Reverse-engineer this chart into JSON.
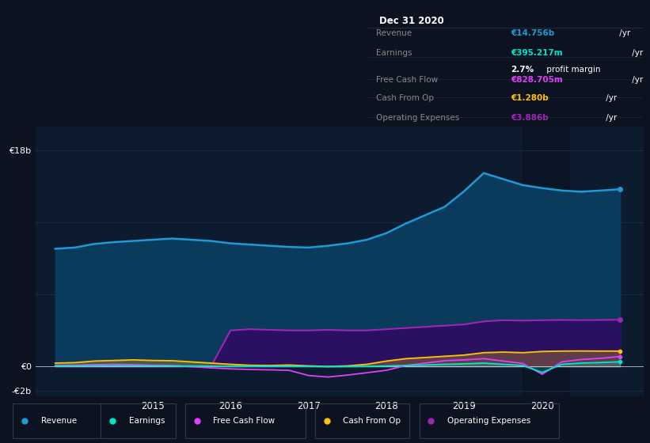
{
  "background_color": "#0c1220",
  "plot_bg_color": "#0d1b2e",
  "grid_color": "#1e3050",
  "xlim": [
    2013.5,
    2021.3
  ],
  "ylim": [
    -2500000000.0,
    20000000000.0
  ],
  "ytick_vals": [
    -2000000000.0,
    0,
    6000000000.0,
    12000000000.0,
    18000000000.0
  ],
  "ytick_labels": [
    "-€2b",
    "€0",
    "",
    "",
    "€18b"
  ],
  "y0_label": "€0",
  "xticks": [
    2015,
    2016,
    2017,
    2018,
    2019,
    2020
  ],
  "legend_items": [
    {
      "label": "Revenue",
      "color": "#1e9bd7"
    },
    {
      "label": "Earnings",
      "color": "#00e5cc"
    },
    {
      "label": "Free Cash Flow",
      "color": "#e040fb"
    },
    {
      "label": "Cash From Op",
      "color": "#ffc107"
    },
    {
      "label": "Operating Expenses",
      "color": "#9c27b0"
    }
  ],
  "infobox": {
    "date": "Dec 31 2020",
    "rows": [
      {
        "label": "Revenue",
        "value": "€14.756b",
        "unit": " /yr",
        "vc": "#1e9bd7"
      },
      {
        "label": "Earnings",
        "value": "€395.217m",
        "unit": " /yr",
        "vc": "#00e5cc"
      },
      {
        "label": "",
        "value": "2.7%",
        "unit": " profit margin",
        "vc": "#ffffff"
      },
      {
        "label": "Free Cash Flow",
        "value": "€828.705m",
        "unit": " /yr",
        "vc": "#e040fb"
      },
      {
        "label": "Cash From Op",
        "value": "€1.280b",
        "unit": " /yr",
        "vc": "#ffc107"
      },
      {
        "label": "Operating Expenses",
        "value": "€3.886b",
        "unit": " /yr",
        "vc": "#9c27b0"
      }
    ]
  },
  "series": {
    "x": [
      2013.75,
      2014.0,
      2014.25,
      2014.5,
      2014.75,
      2015.0,
      2015.25,
      2015.5,
      2015.75,
      2016.0,
      2016.25,
      2016.5,
      2016.75,
      2017.0,
      2017.25,
      2017.5,
      2017.75,
      2018.0,
      2018.25,
      2018.5,
      2018.75,
      2019.0,
      2019.25,
      2019.5,
      2019.75,
      2020.0,
      2020.25,
      2020.5,
      2020.75,
      2021.0
    ],
    "revenue": [
      9800000000.0,
      9900000000.0,
      10200000000.0,
      10350000000.0,
      10450000000.0,
      10550000000.0,
      10650000000.0,
      10550000000.0,
      10450000000.0,
      10250000000.0,
      10150000000.0,
      10050000000.0,
      9950000000.0,
      9900000000.0,
      10050000000.0,
      10250000000.0,
      10550000000.0,
      11100000000.0,
      11900000000.0,
      12600000000.0,
      13300000000.0,
      14600000000.0,
      16100000000.0,
      15600000000.0,
      15100000000.0,
      14850000000.0,
      14650000000.0,
      14550000000.0,
      14650000000.0,
      14756000000.0
    ],
    "op_exp": [
      0,
      0,
      0,
      0,
      0,
      0,
      0,
      0,
      0,
      3000000000.0,
      3100000000.0,
      3050000000.0,
      3000000000.0,
      3000000000.0,
      3050000000.0,
      3000000000.0,
      3000000000.0,
      3100000000.0,
      3200000000.0,
      3300000000.0,
      3400000000.0,
      3500000000.0,
      3750000000.0,
      3850000000.0,
      3820000000.0,
      3850000000.0,
      3870000000.0,
      3860000000.0,
      3870000000.0,
      3886000000.0
    ],
    "cfo": [
      280000000.0,
      320000000.0,
      450000000.0,
      500000000.0,
      550000000.0,
      500000000.0,
      480000000.0,
      380000000.0,
      280000000.0,
      180000000.0,
      100000000.0,
      80000000.0,
      120000000.0,
      50000000.0,
      0.0,
      50000000.0,
      180000000.0,
      450000000.0,
      650000000.0,
      750000000.0,
      850000000.0,
      950000000.0,
      1150000000.0,
      1200000000.0,
      1150000000.0,
      1250000000.0,
      1280000000.0,
      1290000000.0,
      1280000000.0,
      1280000000.0
    ],
    "fcf": [
      80000000.0,
      100000000.0,
      150000000.0,
      180000000.0,
      150000000.0,
      100000000.0,
      80000000.0,
      -20000000.0,
      -120000000.0,
      -200000000.0,
      -250000000.0,
      -280000000.0,
      -320000000.0,
      -750000000.0,
      -880000000.0,
      -720000000.0,
      -520000000.0,
      -320000000.0,
      80000000.0,
      280000000.0,
      480000000.0,
      550000000.0,
      650000000.0,
      450000000.0,
      250000000.0,
      -650000000.0,
      380000000.0,
      580000000.0,
      680000000.0,
      828700000.0
    ],
    "earnings": [
      40000000.0,
      50000000.0,
      60000000.0,
      70000000.0,
      60000000.0,
      50000000.0,
      40000000.0,
      30000000.0,
      20000000.0,
      10000000.0,
      10000000.0,
      20000000.0,
      10000000.0,
      10000000.0,
      -10000000.0,
      0.0,
      10000000.0,
      40000000.0,
      80000000.0,
      120000000.0,
      180000000.0,
      220000000.0,
      280000000.0,
      180000000.0,
      80000000.0,
      -500000000.0,
      180000000.0,
      280000000.0,
      330000000.0,
      395000000.0
    ]
  }
}
